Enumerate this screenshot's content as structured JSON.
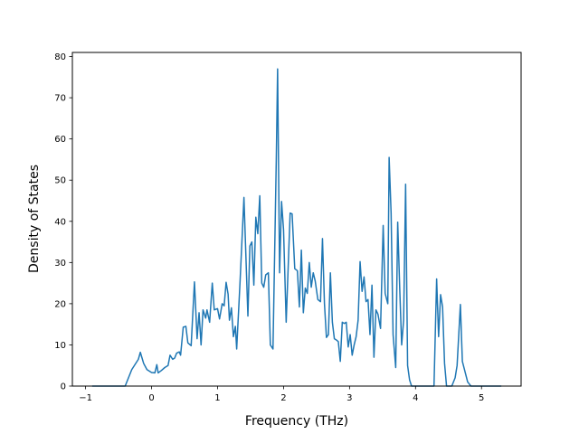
{
  "chart_data": {
    "type": "line",
    "title": "",
    "xlabel": "Frequency (THz)",
    "ylabel": "Density of States",
    "xlim": [
      -1.2,
      5.6
    ],
    "ylim": [
      0,
      81
    ],
    "xticks": [
      -1,
      0,
      1,
      2,
      3,
      4,
      5
    ],
    "yticks": [
      0,
      10,
      20,
      30,
      40,
      50,
      60,
      70,
      80
    ],
    "grid": false,
    "legend": "none",
    "series": [
      {
        "color": "#1f77b4",
        "points": [
          [
            -0.9,
            0.0
          ],
          [
            -0.4,
            0.0
          ],
          [
            -0.3,
            4.0
          ],
          [
            -0.2,
            6.5
          ],
          [
            -0.17,
            8.2
          ],
          [
            -0.12,
            5.5
          ],
          [
            -0.07,
            4.0
          ],
          [
            0.0,
            3.3
          ],
          [
            0.05,
            3.2
          ],
          [
            0.08,
            5.2
          ],
          [
            0.1,
            3.2
          ],
          [
            0.15,
            3.8
          ],
          [
            0.2,
            4.5
          ],
          [
            0.25,
            5.0
          ],
          [
            0.28,
            7.5
          ],
          [
            0.32,
            6.5
          ],
          [
            0.35,
            6.8
          ],
          [
            0.38,
            8.0
          ],
          [
            0.42,
            8.3
          ],
          [
            0.44,
            7.5
          ],
          [
            0.48,
            14.3
          ],
          [
            0.52,
            14.5
          ],
          [
            0.55,
            10.5
          ],
          [
            0.6,
            9.8
          ],
          [
            0.65,
            25.3
          ],
          [
            0.69,
            11.5
          ],
          [
            0.72,
            17.8
          ],
          [
            0.75,
            10.0
          ],
          [
            0.78,
            18.5
          ],
          [
            0.82,
            16.5
          ],
          [
            0.84,
            18.5
          ],
          [
            0.88,
            15.5
          ],
          [
            0.92,
            25.0
          ],
          [
            0.95,
            18.5
          ],
          [
            1.0,
            18.8
          ],
          [
            1.03,
            16.3
          ],
          [
            1.07,
            20.0
          ],
          [
            1.1,
            19.5
          ],
          [
            1.13,
            25.2
          ],
          [
            1.16,
            22.3
          ],
          [
            1.18,
            16.0
          ],
          [
            1.21,
            19.0
          ],
          [
            1.24,
            12.0
          ],
          [
            1.27,
            14.5
          ],
          [
            1.29,
            9.0
          ],
          [
            1.34,
            25.0
          ],
          [
            1.4,
            45.8
          ],
          [
            1.46,
            17.0
          ],
          [
            1.49,
            34.0
          ],
          [
            1.52,
            35.0
          ],
          [
            1.55,
            24.5
          ],
          [
            1.58,
            41.0
          ],
          [
            1.61,
            37.0
          ],
          [
            1.64,
            46.2
          ],
          [
            1.67,
            25.0
          ],
          [
            1.7,
            24.0
          ],
          [
            1.73,
            27.0
          ],
          [
            1.77,
            27.5
          ],
          [
            1.8,
            10.0
          ],
          [
            1.84,
            9.0
          ],
          [
            1.89,
            55.0
          ],
          [
            1.91,
            77.0
          ],
          [
            1.94,
            27.5
          ],
          [
            1.97,
            44.8
          ],
          [
            2.0,
            38.0
          ],
          [
            2.04,
            15.5
          ],
          [
            2.1,
            42.0
          ],
          [
            2.13,
            41.8
          ],
          [
            2.17,
            28.5
          ],
          [
            2.21,
            28.0
          ],
          [
            2.24,
            19.2
          ],
          [
            2.27,
            33.0
          ],
          [
            2.3,
            17.8
          ],
          [
            2.33,
            23.8
          ],
          [
            2.36,
            22.5
          ],
          [
            2.39,
            30.0
          ],
          [
            2.42,
            24.0
          ],
          [
            2.45,
            27.5
          ],
          [
            2.48,
            25.5
          ],
          [
            2.52,
            21.0
          ],
          [
            2.56,
            20.5
          ],
          [
            2.59,
            35.8
          ],
          [
            2.62,
            20.0
          ],
          [
            2.65,
            11.8
          ],
          [
            2.68,
            12.5
          ],
          [
            2.71,
            27.5
          ],
          [
            2.74,
            15.5
          ],
          [
            2.77,
            11.5
          ],
          [
            2.8,
            11.2
          ],
          [
            2.83,
            10.8
          ],
          [
            2.86,
            6.0
          ],
          [
            2.89,
            15.5
          ],
          [
            2.92,
            15.2
          ],
          [
            2.95,
            15.5
          ],
          [
            2.98,
            9.5
          ],
          [
            3.01,
            12.5
          ],
          [
            3.04,
            7.5
          ],
          [
            3.07,
            10.0
          ],
          [
            3.1,
            12.0
          ],
          [
            3.13,
            16.0
          ],
          [
            3.16,
            30.2
          ],
          [
            3.19,
            23.0
          ],
          [
            3.22,
            26.5
          ],
          [
            3.25,
            20.5
          ],
          [
            3.28,
            21.0
          ],
          [
            3.31,
            12.5
          ],
          [
            3.34,
            24.5
          ],
          [
            3.37,
            7.0
          ],
          [
            3.4,
            18.5
          ],
          [
            3.43,
            17.5
          ],
          [
            3.47,
            14.0
          ],
          [
            3.51,
            39.0
          ],
          [
            3.54,
            22.5
          ],
          [
            3.58,
            20.0
          ],
          [
            3.6,
            55.5
          ],
          [
            3.63,
            42.0
          ],
          [
            3.66,
            12.5
          ],
          [
            3.7,
            4.5
          ],
          [
            3.73,
            39.8
          ],
          [
            3.76,
            24.0
          ],
          [
            3.79,
            10.0
          ],
          [
            3.82,
            16.0
          ],
          [
            3.85,
            49.0
          ],
          [
            3.88,
            5.0
          ],
          [
            3.91,
            1.5
          ],
          [
            3.94,
            0.0
          ],
          [
            4.28,
            0.0
          ],
          [
            4.32,
            26.0
          ],
          [
            4.35,
            12.0
          ],
          [
            4.38,
            22.2
          ],
          [
            4.41,
            19.2
          ],
          [
            4.44,
            5.5
          ],
          [
            4.47,
            0.0
          ],
          [
            4.55,
            0.0
          ],
          [
            4.6,
            2.0
          ],
          [
            4.63,
            5.0
          ],
          [
            4.68,
            19.8
          ],
          [
            4.71,
            6.0
          ],
          [
            4.75,
            3.5
          ],
          [
            4.79,
            1.0
          ],
          [
            4.84,
            0.0
          ],
          [
            5.3,
            0.0
          ]
        ]
      }
    ]
  }
}
